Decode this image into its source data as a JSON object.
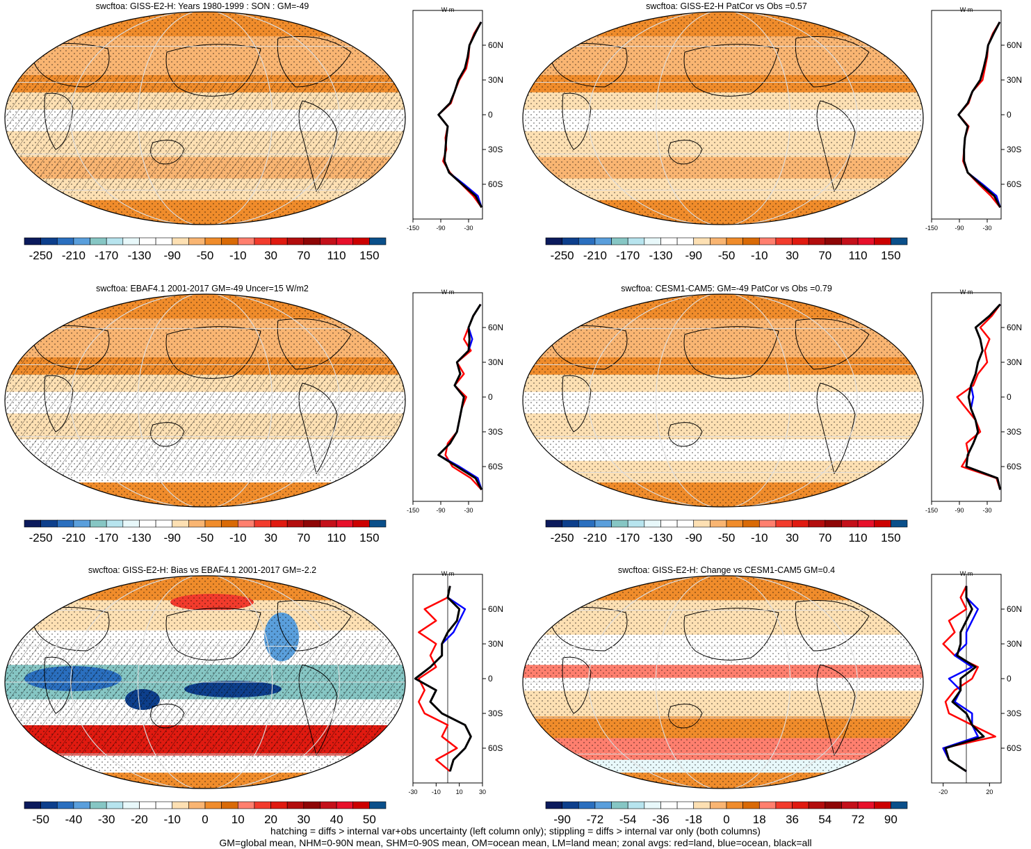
{
  "footer": {
    "line1": "hatching = diffs > internal var+obs uncertainty (left column only); stippling = diffs > internal var only (both columns)",
    "line2": "GM=global mean, NHM=0-90N mean, SHM=0-90S mean, OM=ocean mean, LM=land mean; zonal avgs: red=land, blue=ocean, black=all"
  },
  "palettes": {
    "main": [
      "#0b1a5c",
      "#0d3f8c",
      "#2a6fbf",
      "#5a9fdc",
      "#86c6c4",
      "#b7e4ee",
      "#e8f8fa",
      "#ffffff",
      "#ffffff",
      "#fde0b3",
      "#f9b572",
      "#f08c2b",
      "#d96a06",
      "#ff7f6e",
      "#f23b2c",
      "#e01a10",
      "#b30d0d",
      "#8e0606",
      "#c4101a",
      "#e8102a",
      "#cc0000",
      "#0a4f8a"
    ],
    "bias": [
      "#0b1a5c",
      "#0d3f8c",
      "#2a6fbf",
      "#5a9fdc",
      "#86c6c4",
      "#b7e4ee",
      "#e8f8fa",
      "#ffffff",
      "#ffffff",
      "#fde0b3",
      "#f9b572",
      "#f08c2b",
      "#d96a06",
      "#ff7f6e",
      "#f23b2c",
      "#e01a10",
      "#b30d0d",
      "#8e0606",
      "#c4101a",
      "#e8102a",
      "#cc0000",
      "#0a4f8a"
    ]
  },
  "chart_data": [
    {
      "type": "heatmap",
      "title": "swcftoa: GISS-E2-H: Years 1980-1999 : SON : GM=-49",
      "colorbar_labels": [
        "-250",
        "-210",
        "-170",
        "-130",
        "-90",
        "-50",
        "-10",
        "30",
        "70",
        "110",
        "150"
      ],
      "zonal": {
        "xlabel_top": "W m",
        "xticklabels": [
          "-150",
          "-90",
          "-30"
        ],
        "xlim": [
          -150,
          0
        ],
        "yticklabels": [
          "60N",
          "30N",
          "0",
          "30S",
          "60S"
        ],
        "lat": [
          -80,
          -70,
          -60,
          -50,
          -40,
          -30,
          -20,
          -10,
          0,
          10,
          20,
          30,
          40,
          50,
          60,
          70,
          80
        ],
        "series": [
          {
            "name": "land",
            "color": "#ff0000",
            "values": [
              -2,
              -20,
              -45,
              -70,
              -85,
              -78,
              -80,
              -75,
              -95,
              -68,
              -60,
              -50,
              -35,
              -30,
              -28,
              -18,
              -3
            ]
          },
          {
            "name": "ocean",
            "color": "#0000ff",
            "values": [
              -2,
              -10,
              -40,
              -72,
              -82,
              -80,
              -78,
              -75,
              -95,
              -70,
              -60,
              -52,
              -38,
              -32,
              -28,
              -16,
              -3
            ]
          },
          {
            "name": "all",
            "color": "#000000",
            "values": [
              -2,
              -15,
              -44,
              -72,
              -82,
              -80,
              -78,
              -75,
              -95,
              -70,
              -60,
              -52,
              -38,
              -32,
              -28,
              -16,
              -3
            ]
          }
        ]
      }
    },
    {
      "type": "heatmap",
      "title": "swcftoa: GISS-E2-H PatCor vs Obs =0.57",
      "colorbar_labels": [
        "-250",
        "-210",
        "-170",
        "-130",
        "-90",
        "-50",
        "-10",
        "30",
        "70",
        "110",
        "150"
      ],
      "zonal": {
        "xlabel_top": "W m",
        "xticklabels": [
          "-150",
          "-90",
          "-30"
        ],
        "xlim": [
          -150,
          0
        ],
        "yticklabels": [
          "60N",
          "30N",
          "0",
          "30S",
          "60S"
        ],
        "lat": [
          -80,
          -70,
          -60,
          -50,
          -40,
          -30,
          -20,
          -10,
          0,
          10,
          20,
          30,
          40,
          50,
          60,
          70,
          80
        ],
        "series": [
          {
            "name": "land",
            "color": "#ff0000",
            "values": [
              -2,
              -22,
              -48,
              -72,
              -82,
              -80,
              -78,
              -70,
              -92,
              -70,
              -62,
              -40,
              -35,
              -30,
              -28,
              -18,
              -3
            ]
          },
          {
            "name": "ocean",
            "color": "#0000ff",
            "values": [
              -2,
              -10,
              -40,
              -72,
              -80,
              -80,
              -78,
              -72,
              -92,
              -72,
              -62,
              -45,
              -38,
              -32,
              -28,
              -16,
              -3
            ]
          },
          {
            "name": "all",
            "color": "#000000",
            "values": [
              -2,
              -15,
              -44,
              -72,
              -80,
              -80,
              -78,
              -72,
              -92,
              -72,
              -62,
              -45,
              -38,
              -32,
              -28,
              -16,
              -3
            ]
          }
        ]
      }
    },
    {
      "type": "heatmap",
      "title": "swcftoa: EBAF4.1 2001-2017 GM=-49 Uncer=15 W/m2",
      "colorbar_labels": [
        "-250",
        "-210",
        "-170",
        "-130",
        "-90",
        "-50",
        "-10",
        "30",
        "70",
        "110",
        "150"
      ],
      "zonal": {
        "xlabel_top": "W m",
        "xticklabels": [
          "-150",
          "-90",
          "-30"
        ],
        "xlim": [
          -150,
          0
        ],
        "yticklabels": [
          "60N",
          "30N",
          "0",
          "30S",
          "60S"
        ],
        "lat": [
          -80,
          -70,
          -60,
          -50,
          -40,
          -30,
          -20,
          -10,
          0,
          10,
          20,
          30,
          40,
          50,
          60,
          70,
          80
        ],
        "series": [
          {
            "name": "land",
            "color": "#ff0000",
            "values": [
              -2,
              -25,
              -65,
              -80,
              -75,
              -55,
              -50,
              -45,
              -35,
              -60,
              -40,
              -55,
              -25,
              -40,
              -30,
              -20,
              -4
            ]
          },
          {
            "name": "ocean",
            "color": "#0000ff",
            "values": [
              -2,
              -10,
              -50,
              -95,
              -70,
              -55,
              -50,
              -45,
              -40,
              -60,
              -48,
              -55,
              -30,
              -22,
              -30,
              -20,
              -4
            ]
          },
          {
            "name": "all",
            "color": "#000000",
            "values": [
              -2,
              -15,
              -55,
              -95,
              -70,
              -55,
              -50,
              -45,
              -40,
              -60,
              -48,
              -55,
              -30,
              -28,
              -30,
              -20,
              -4
            ]
          }
        ]
      }
    },
    {
      "type": "heatmap",
      "title": "swcftoa: CESM1-CAM5: GM=-49 PatCor vs Obs =0.79",
      "colorbar_labels": [
        "-250",
        "-210",
        "-170",
        "-130",
        "-90",
        "-50",
        "-10",
        "30",
        "70",
        "110",
        "150"
      ],
      "zonal": {
        "xlabel_top": "W m",
        "xticklabels": [
          "-150",
          "-90",
          "-30"
        ],
        "xlim": [
          -150,
          0
        ],
        "yticklabels": [
          "60N",
          "30N",
          "0",
          "30S",
          "60S"
        ],
        "lat": [
          -80,
          -70,
          -60,
          -50,
          -40,
          -30,
          -20,
          -10,
          0,
          10,
          20,
          30,
          40,
          50,
          60,
          70,
          80
        ],
        "series": [
          {
            "name": "land",
            "color": "#ff0000",
            "values": [
              -2,
              -10,
              -85,
              -70,
              -75,
              -45,
              -55,
              -75,
              -95,
              -60,
              -50,
              -30,
              -35,
              -25,
              -45,
              -20,
              -2
            ]
          },
          {
            "name": "ocean",
            "color": "#0000ff",
            "values": [
              -2,
              -8,
              -75,
              -72,
              -60,
              -50,
              -55,
              -65,
              -60,
              -65,
              -55,
              -50,
              -40,
              -45,
              -55,
              -25,
              -2
            ]
          },
          {
            "name": "all",
            "color": "#000000",
            "values": [
              -2,
              -8,
              -75,
              -72,
              -60,
              -50,
              -55,
              -65,
              -70,
              -65,
              -55,
              -50,
              -40,
              -45,
              -55,
              -25,
              -2
            ]
          }
        ]
      }
    },
    {
      "type": "heatmap",
      "title": "swcftoa: GISS-E2-H: Bias vs EBAF4.1 2001-2017  GM=-2.2",
      "colorbar_labels": [
        "-50",
        "-40",
        "-30",
        "-20",
        "-10",
        "0",
        "10",
        "20",
        "30",
        "40",
        "50"
      ],
      "zonal": {
        "xlabel_top": "W m",
        "xticklabels": [
          "-30",
          "-10",
          "10",
          "30"
        ],
        "xlim": [
          -30,
          30
        ],
        "yticklabels": [
          "60N",
          "30N",
          "0",
          "30S",
          "60S"
        ],
        "lat": [
          -80,
          -70,
          -60,
          -50,
          -40,
          -30,
          -20,
          -10,
          0,
          10,
          20,
          30,
          40,
          50,
          60,
          70,
          80
        ],
        "series": [
          {
            "name": "land",
            "color": "#ff0000",
            "values": [
              2,
              -10,
              8,
              -5,
              0,
              -20,
              -25,
              -20,
              -25,
              -10,
              -15,
              -10,
              -25,
              -10,
              -20,
              0,
              2
            ]
          },
          {
            "name": "ocean",
            "color": "#0000ff",
            "values": [
              2,
              5,
              15,
              20,
              15,
              -5,
              -15,
              -10,
              -28,
              -15,
              -5,
              -5,
              5,
              10,
              15,
              0,
              2
            ]
          },
          {
            "name": "all",
            "color": "#000000",
            "values": [
              2,
              5,
              15,
              20,
              15,
              -5,
              -15,
              -10,
              -28,
              -15,
              -5,
              -5,
              0,
              8,
              10,
              0,
              2
            ]
          }
        ]
      }
    },
    {
      "type": "heatmap",
      "title": "swcftoa: GISS-E2-H: Change vs CESM1-CAM5 GM=0.4",
      "colorbar_labels": [
        "-90",
        "-72",
        "-54",
        "-36",
        "-18",
        "0",
        "18",
        "36",
        "54",
        "72",
        "90"
      ],
      "zonal": {
        "xlabel_top": "W m",
        "xticklabels": [
          "-20",
          "20"
        ],
        "xlim": [
          -30,
          30
        ],
        "yticklabels": [
          "60N",
          "30N",
          "0",
          "30S",
          "60S"
        ],
        "lat": [
          -80,
          -70,
          -60,
          -50,
          -40,
          -30,
          -20,
          -10,
          0,
          10,
          20,
          30,
          40,
          50,
          60,
          70,
          80
        ],
        "series": [
          {
            "name": "land",
            "color": "#ff0000",
            "values": [
              0,
              -15,
              -20,
              25,
              5,
              -15,
              -18,
              -10,
              5,
              10,
              -10,
              -20,
              -10,
              -15,
              0,
              -5,
              0
            ]
          },
          {
            "name": "ocean",
            "color": "#0000ff",
            "values": [
              0,
              -15,
              -20,
              10,
              5,
              5,
              -10,
              -5,
              -15,
              5,
              -10,
              0,
              0,
              5,
              10,
              0,
              0
            ]
          },
          {
            "name": "all",
            "color": "#000000",
            "values": [
              0,
              -15,
              -18,
              15,
              5,
              0,
              -12,
              -5,
              -5,
              8,
              -8,
              -5,
              -5,
              0,
              5,
              0,
              0
            ]
          }
        ]
      }
    }
  ]
}
